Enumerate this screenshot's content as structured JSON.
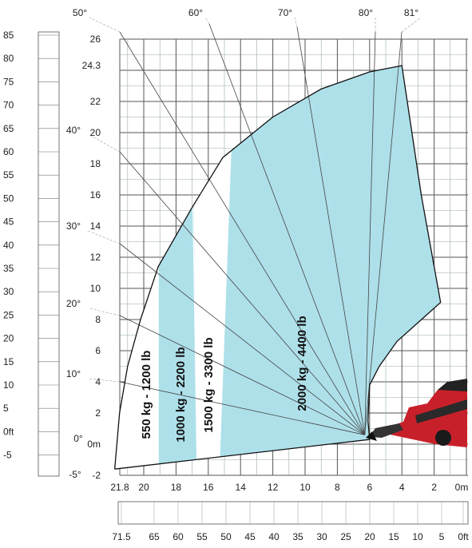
{
  "chart_data": {
    "type": "area",
    "title": "",
    "metric_axis": {
      "y_ticks": [
        "26",
        "24.3",
        "22",
        "20",
        "18",
        "16",
        "14",
        "12",
        "10",
        "8",
        "6",
        "4",
        "2",
        "0m",
        "-2"
      ],
      "x_ticks": [
        "21.8",
        "20",
        "18",
        "16",
        "14",
        "12",
        "10",
        "8",
        "6",
        "4",
        "2",
        "0m"
      ],
      "ylim": [
        -2,
        26
      ],
      "xlim": [
        21.8,
        0
      ]
    },
    "imperial_axis": {
      "y_ticks": [
        "85",
        "80",
        "75",
        "70",
        "65",
        "60",
        "55",
        "50",
        "45",
        "40",
        "35",
        "30",
        "25",
        "20",
        "15",
        "10",
        "5",
        "0ft",
        "-5"
      ],
      "x_ticks": [
        "71.5",
        "65",
        "60",
        "55",
        "50",
        "45",
        "40",
        "35",
        "30",
        "25",
        "20",
        "15",
        "10",
        "5",
        "0ft"
      ]
    },
    "boom_angles_top": [
      "50°",
      "60°",
      "70°",
      "80°",
      "81°"
    ],
    "boom_angles_side": [
      "40°",
      "30°",
      "20°",
      "10°",
      "0°",
      "-5°"
    ],
    "max_height": 24.3,
    "max_reach": 21.8,
    "series": [
      {
        "name": "550 kg - 1200 lb",
        "x_from": 21.8,
        "x_to": 19.1
      },
      {
        "name": "1000 kg - 2200 lb",
        "x_from": 19.1,
        "x_to": 17.0
      },
      {
        "name": "1500 kg - 3300 lb",
        "x_from": 17.0,
        "x_to": 15.1
      },
      {
        "name": "2000 kg - 4400 lb",
        "x_from": 15.1,
        "x_to": 1.6
      }
    ],
    "colors": {
      "load_zone": "#aee0ea",
      "white_zone": "#ffffff",
      "machine": "#c8202a"
    }
  }
}
